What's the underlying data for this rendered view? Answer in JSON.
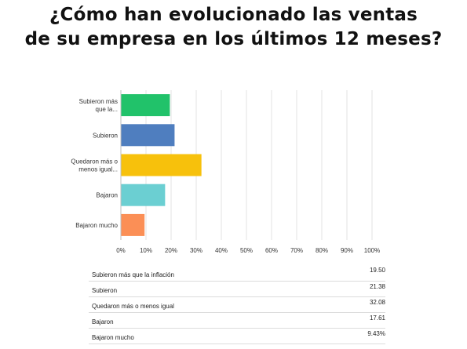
{
  "header": {
    "title_line1": "¿Cómo han evolucionado las ventas",
    "title_line2": "de su empresa en los últimos 12 meses?"
  },
  "chart_data": {
    "type": "bar",
    "orientation": "horizontal",
    "categories": [
      [
        "Subieron más",
        "que la..."
      ],
      [
        "Subieron"
      ],
      [
        "Quedaron más o",
        "menos igual..."
      ],
      [
        "Bajaron"
      ],
      [
        "Bajaron mucho"
      ]
    ],
    "values": [
      19.5,
      21.38,
      32.08,
      17.61,
      9.43
    ],
    "colors": [
      "#21c26a",
      "#4f7ebf",
      "#f7c10c",
      "#6bcfd2",
      "#fb8f56"
    ],
    "xlim": [
      0,
      100
    ],
    "xticks": [
      "0%",
      "10%",
      "20%",
      "30%",
      "40%",
      "50%",
      "60%",
      "70%",
      "80%",
      "90%",
      "100%"
    ],
    "grid": true,
    "title": "",
    "xlabel": "",
    "ylabel": ""
  },
  "table": {
    "rows": [
      {
        "label": "Subieron más que la inflación",
        "value": "19.50"
      },
      {
        "label": "Subieron",
        "value": "21.38"
      },
      {
        "label": "Quedaron más o menos igual",
        "value": "32.08"
      },
      {
        "label": "Bajaron",
        "value": "17.61"
      },
      {
        "label": "Bajaron mucho",
        "value": "9.43%"
      }
    ]
  }
}
